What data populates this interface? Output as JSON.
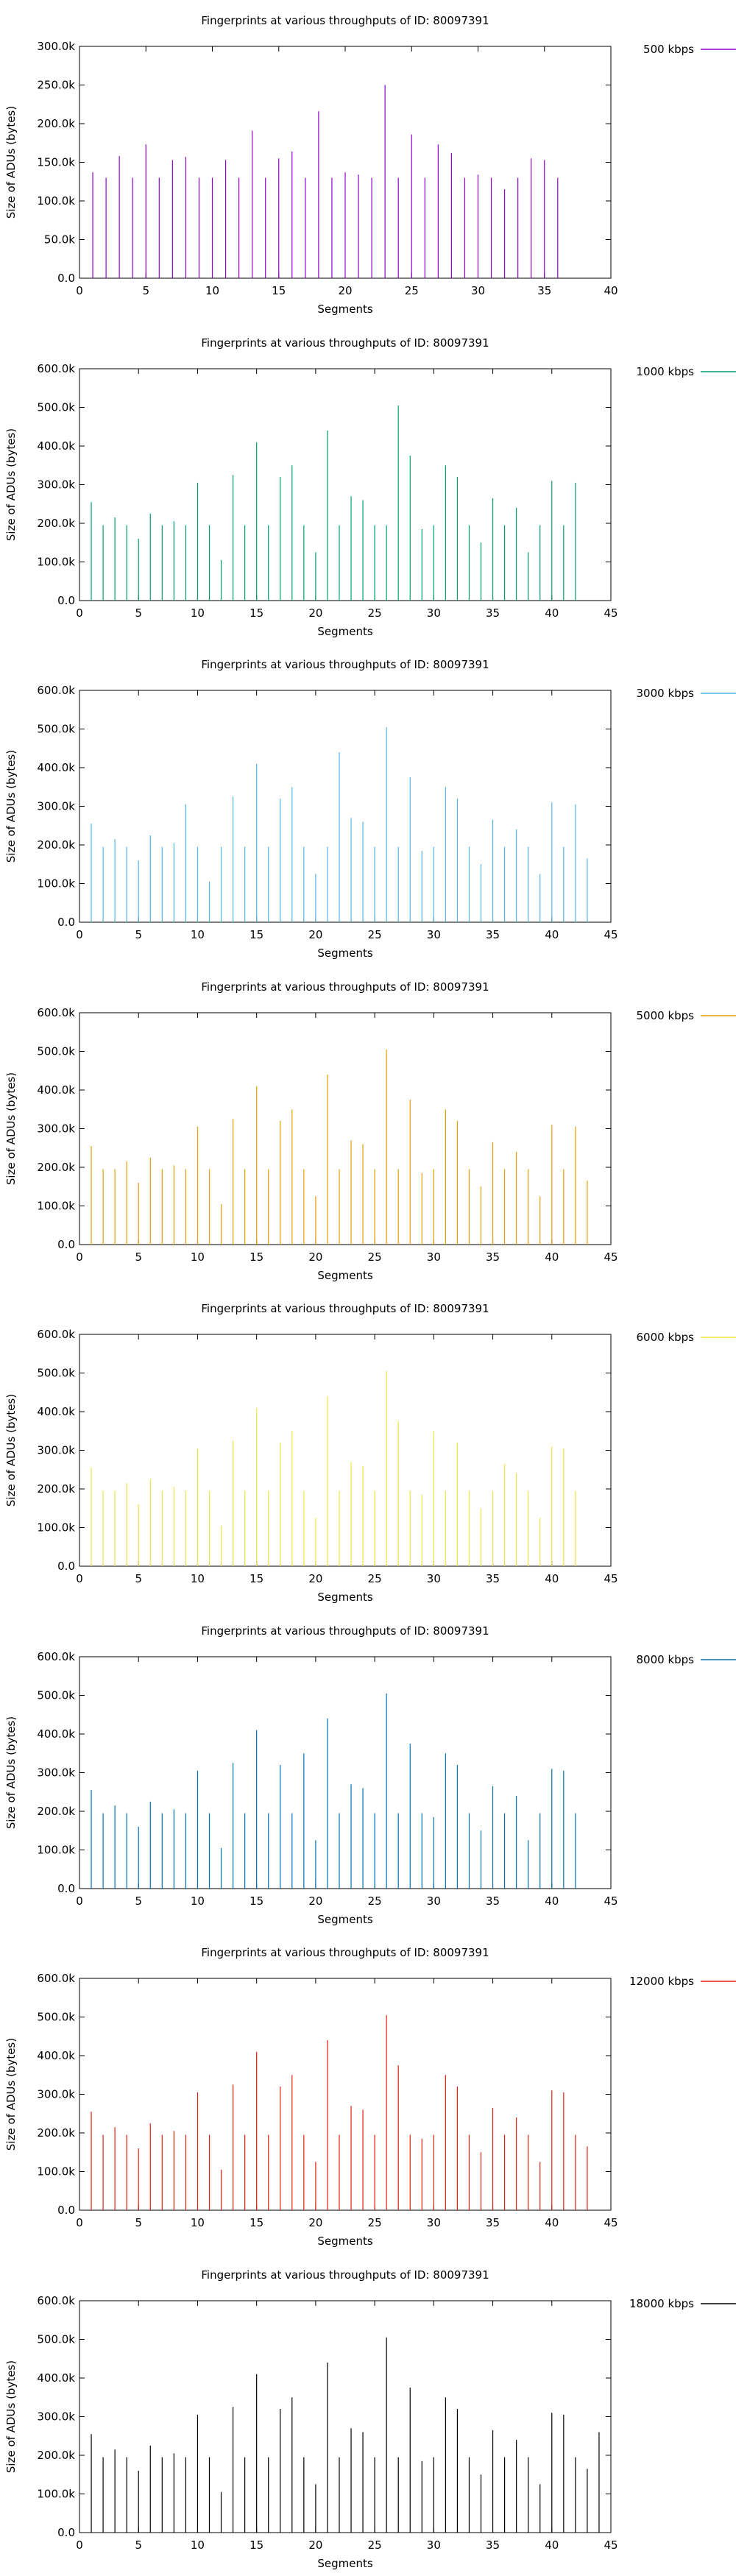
{
  "chart_data": [
    {
      "type": "bar",
      "title": "Fingerprints at various throughputs of ID: 80097391",
      "xlabel": "Segments",
      "ylabel": "Size of ADUs (bytes)",
      "xlim": [
        0,
        40
      ],
      "ylim": [
        0,
        300000
      ],
      "xticks": [
        "0",
        "5",
        "10",
        "15",
        "20",
        "25",
        "30",
        "35",
        "40"
      ],
      "yticks": [
        "0.0",
        "50.0k",
        "100.0k",
        "150.0k",
        "200.0k",
        "250.0k",
        "300.0k"
      ],
      "grid": false,
      "legend_position": "top-right",
      "series": [
        {
          "name": "500 kbps",
          "color": "#9400d3",
          "x": [
            1,
            2,
            3,
            4,
            5,
            6,
            7,
            8,
            9,
            10,
            11,
            12,
            13,
            14,
            15,
            16,
            17,
            18,
            19,
            20,
            21,
            22,
            23,
            24,
            25,
            26,
            27,
            28,
            29,
            30,
            31,
            32,
            33,
            34,
            35,
            36
          ],
          "values": [
            137000,
            130000,
            158000,
            130000,
            173000,
            130000,
            153000,
            157000,
            130000,
            130000,
            153000,
            130000,
            191000,
            130000,
            155000,
            164000,
            130000,
            216000,
            130000,
            137000,
            134000,
            130000,
            250000,
            130000,
            186000,
            130000,
            173000,
            162000,
            130000,
            134000,
            130000,
            115000,
            130000,
            155000,
            153000,
            130000
          ]
        }
      ]
    },
    {
      "type": "bar",
      "title": "Fingerprints at various throughputs of ID: 80097391",
      "xlabel": "Segments",
      "ylabel": "Size of ADUs (bytes)",
      "xlim": [
        0,
        45
      ],
      "ylim": [
        0,
        600000
      ],
      "xticks": [
        "0",
        "5",
        "10",
        "15",
        "20",
        "25",
        "30",
        "35",
        "40",
        "45"
      ],
      "yticks": [
        "0.0",
        "100.0k",
        "200.0k",
        "300.0k",
        "400.0k",
        "500.0k",
        "600.0k"
      ],
      "grid": false,
      "legend_position": "top-right",
      "series": [
        {
          "name": "1000 kbps",
          "color": "#009e73",
          "x": [
            1,
            2,
            3,
            4,
            5,
            6,
            7,
            8,
            9,
            10,
            11,
            12,
            13,
            14,
            15,
            16,
            17,
            18,
            19,
            20,
            21,
            22,
            23,
            24,
            25,
            26,
            27,
            28,
            29,
            30,
            31,
            32,
            33,
            34,
            35,
            36,
            37,
            38,
            39,
            40,
            41,
            42
          ],
          "values": [
            255000,
            195000,
            215000,
            195000,
            160000,
            225000,
            195000,
            205000,
            195000,
            305000,
            195000,
            105000,
            325000,
            195000,
            410000,
            195000,
            320000,
            350000,
            195000,
            125000,
            440000,
            195000,
            270000,
            260000,
            195000,
            195000,
            505000,
            375000,
            185000,
            195000,
            350000,
            320000,
            195000,
            150000,
            265000,
            195000,
            240000,
            125000,
            195000,
            310000,
            195000,
            305000
          ]
        }
      ]
    },
    {
      "type": "bar",
      "title": "Fingerprints at various throughputs of ID: 80097391",
      "xlabel": "Segments",
      "ylabel": "Size of ADUs (bytes)",
      "xlim": [
        0,
        45
      ],
      "ylim": [
        0,
        600000
      ],
      "xticks": [
        "0",
        "5",
        "10",
        "15",
        "20",
        "25",
        "30",
        "35",
        "40",
        "45"
      ],
      "yticks": [
        "0.0",
        "100.0k",
        "200.0k",
        "300.0k",
        "400.0k",
        "500.0k",
        "600.0k"
      ],
      "grid": false,
      "legend_position": "top-right",
      "series": [
        {
          "name": "3000 kbps",
          "color": "#56b4e9",
          "x": [
            1,
            2,
            3,
            4,
            5,
            6,
            7,
            8,
            9,
            10,
            11,
            12,
            13,
            14,
            15,
            16,
            17,
            18,
            19,
            20,
            21,
            22,
            23,
            24,
            25,
            26,
            27,
            28,
            29,
            30,
            31,
            32,
            33,
            34,
            35,
            36,
            37,
            38,
            39,
            40,
            41,
            42,
            43
          ],
          "values": [
            255000,
            195000,
            215000,
            195000,
            160000,
            225000,
            195000,
            205000,
            305000,
            195000,
            105000,
            195000,
            325000,
            195000,
            410000,
            195000,
            320000,
            350000,
            195000,
            125000,
            195000,
            440000,
            270000,
            260000,
            195000,
            505000,
            195000,
            375000,
            185000,
            195000,
            350000,
            320000,
            195000,
            150000,
            265000,
            195000,
            240000,
            195000,
            125000,
            310000,
            195000,
            305000,
            165000
          ]
        }
      ]
    },
    {
      "type": "bar",
      "title": "Fingerprints at various throughputs of ID: 80097391",
      "xlabel": "Segments",
      "ylabel": "Size of ADUs (bytes)",
      "xlim": [
        0,
        45
      ],
      "ylim": [
        0,
        600000
      ],
      "xticks": [
        "0",
        "5",
        "10",
        "15",
        "20",
        "25",
        "30",
        "35",
        "40",
        "45"
      ],
      "yticks": [
        "0.0",
        "100.0k",
        "200.0k",
        "300.0k",
        "400.0k",
        "500.0k",
        "600.0k"
      ],
      "grid": false,
      "legend_position": "top-right",
      "series": [
        {
          "name": "5000 kbps",
          "color": "#e69f00",
          "x": [
            1,
            2,
            3,
            4,
            5,
            6,
            7,
            8,
            9,
            10,
            11,
            12,
            13,
            14,
            15,
            16,
            17,
            18,
            19,
            20,
            21,
            22,
            23,
            24,
            25,
            26,
            27,
            28,
            29,
            30,
            31,
            32,
            33,
            34,
            35,
            36,
            37,
            38,
            39,
            40,
            41,
            42,
            43
          ],
          "values": [
            255000,
            195000,
            195000,
            215000,
            160000,
            225000,
            195000,
            205000,
            195000,
            305000,
            195000,
            105000,
            325000,
            195000,
            410000,
            195000,
            320000,
            350000,
            195000,
            125000,
            440000,
            195000,
            270000,
            260000,
            195000,
            505000,
            195000,
            375000,
            185000,
            195000,
            350000,
            320000,
            195000,
            150000,
            265000,
            195000,
            240000,
            195000,
            125000,
            310000,
            195000,
            305000,
            165000
          ]
        }
      ]
    },
    {
      "type": "bar",
      "title": "Fingerprints at various throughputs of ID: 80097391",
      "xlabel": "Segments",
      "ylabel": "Size of ADUs (bytes)",
      "xlim": [
        0,
        45
      ],
      "ylim": [
        0,
        600000
      ],
      "xticks": [
        "0",
        "5",
        "10",
        "15",
        "20",
        "25",
        "30",
        "35",
        "40",
        "45"
      ],
      "yticks": [
        "0.0",
        "100.0k",
        "200.0k",
        "300.0k",
        "400.0k",
        "500.0k",
        "600.0k"
      ],
      "grid": false,
      "legend_position": "top-right",
      "series": [
        {
          "name": "6000 kbps",
          "color": "#f0e442",
          "x": [
            1,
            2,
            3,
            4,
            5,
            6,
            7,
            8,
            9,
            10,
            11,
            12,
            13,
            14,
            15,
            16,
            17,
            18,
            19,
            20,
            21,
            22,
            23,
            24,
            25,
            26,
            27,
            28,
            29,
            30,
            31,
            32,
            33,
            34,
            35,
            36,
            37,
            38,
            39,
            40,
            41,
            42
          ],
          "values": [
            255000,
            195000,
            195000,
            215000,
            160000,
            225000,
            195000,
            205000,
            195000,
            305000,
            195000,
            105000,
            325000,
            195000,
            410000,
            195000,
            320000,
            350000,
            195000,
            125000,
            440000,
            195000,
            270000,
            260000,
            195000,
            505000,
            375000,
            195000,
            185000,
            350000,
            195000,
            320000,
            195000,
            150000,
            195000,
            265000,
            240000,
            195000,
            125000,
            310000,
            305000,
            195000
          ]
        }
      ]
    },
    {
      "type": "bar",
      "title": "Fingerprints at various throughputs of ID: 80097391",
      "xlabel": "Segments",
      "ylabel": "Size of ADUs (bytes)",
      "xlim": [
        0,
        45
      ],
      "ylim": [
        0,
        600000
      ],
      "xticks": [
        "0",
        "5",
        "10",
        "15",
        "20",
        "25",
        "30",
        "35",
        "40",
        "45"
      ],
      "yticks": [
        "0.0",
        "100.0k",
        "200.0k",
        "300.0k",
        "400.0k",
        "500.0k",
        "600.0k"
      ],
      "grid": false,
      "legend_position": "top-right",
      "series": [
        {
          "name": "8000 kbps",
          "color": "#0072b2",
          "x": [
            1,
            2,
            3,
            4,
            5,
            6,
            7,
            8,
            9,
            10,
            11,
            12,
            13,
            14,
            15,
            16,
            17,
            18,
            19,
            20,
            21,
            22,
            23,
            24,
            25,
            26,
            27,
            28,
            29,
            30,
            31,
            32,
            33,
            34,
            35,
            36,
            37,
            38,
            39,
            40,
            41,
            42
          ],
          "values": [
            255000,
            195000,
            215000,
            195000,
            160000,
            225000,
            195000,
            205000,
            195000,
            305000,
            195000,
            105000,
            325000,
            195000,
            410000,
            195000,
            320000,
            195000,
            350000,
            125000,
            440000,
            195000,
            270000,
            260000,
            195000,
            505000,
            195000,
            375000,
            195000,
            185000,
            350000,
            320000,
            195000,
            150000,
            265000,
            195000,
            240000,
            125000,
            195000,
            310000,
            305000,
            195000
          ]
        }
      ]
    },
    {
      "type": "bar",
      "title": "Fingerprints at various throughputs of ID: 80097391",
      "xlabel": "Segments",
      "ylabel": "Size of ADUs (bytes)",
      "xlim": [
        0,
        45
      ],
      "ylim": [
        0,
        600000
      ],
      "xticks": [
        "0",
        "5",
        "10",
        "15",
        "20",
        "25",
        "30",
        "35",
        "40",
        "45"
      ],
      "yticks": [
        "0.0",
        "100.0k",
        "200.0k",
        "300.0k",
        "400.0k",
        "500.0k",
        "600.0k"
      ],
      "grid": false,
      "legend_position": "top-right",
      "series": [
        {
          "name": "12000 kbps",
          "color": "#e51e10",
          "x": [
            1,
            2,
            3,
            4,
            5,
            6,
            7,
            8,
            9,
            10,
            11,
            12,
            13,
            14,
            15,
            16,
            17,
            18,
            19,
            20,
            21,
            22,
            23,
            24,
            25,
            26,
            27,
            28,
            29,
            30,
            31,
            32,
            33,
            34,
            35,
            36,
            37,
            38,
            39,
            40,
            41,
            42,
            43
          ],
          "values": [
            255000,
            195000,
            215000,
            195000,
            160000,
            225000,
            195000,
            205000,
            195000,
            305000,
            195000,
            105000,
            325000,
            195000,
            410000,
            195000,
            320000,
            350000,
            195000,
            125000,
            440000,
            195000,
            270000,
            260000,
            195000,
            505000,
            375000,
            195000,
            185000,
            195000,
            350000,
            320000,
            195000,
            150000,
            265000,
            195000,
            240000,
            195000,
            125000,
            310000,
            305000,
            195000,
            165000
          ]
        }
      ]
    },
    {
      "type": "bar",
      "title": "Fingerprints at various throughputs of ID: 80097391",
      "xlabel": "Segments",
      "ylabel": "Size of ADUs (bytes)",
      "xlim": [
        0,
        45
      ],
      "ylim": [
        0,
        600000
      ],
      "xticks": [
        "0",
        "5",
        "10",
        "15",
        "20",
        "25",
        "30",
        "35",
        "40",
        "45"
      ],
      "yticks": [
        "0.0",
        "100.0k",
        "200.0k",
        "300.0k",
        "400.0k",
        "500.0k",
        "600.0k"
      ],
      "grid": false,
      "legend_position": "top-right",
      "series": [
        {
          "name": "18000 kbps",
          "color": "#000000",
          "x": [
            1,
            2,
            3,
            4,
            5,
            6,
            7,
            8,
            9,
            10,
            11,
            12,
            13,
            14,
            15,
            16,
            17,
            18,
            19,
            20,
            21,
            22,
            23,
            24,
            25,
            26,
            27,
            28,
            29,
            30,
            31,
            32,
            33,
            34,
            35,
            36,
            37,
            38,
            39,
            40,
            41,
            42,
            43,
            44
          ],
          "values": [
            255000,
            195000,
            215000,
            195000,
            160000,
            225000,
            195000,
            205000,
            195000,
            305000,
            195000,
            105000,
            325000,
            195000,
            410000,
            195000,
            320000,
            350000,
            195000,
            125000,
            440000,
            195000,
            270000,
            260000,
            195000,
            505000,
            195000,
            375000,
            185000,
            195000,
            350000,
            320000,
            195000,
            150000,
            265000,
            195000,
            240000,
            195000,
            125000,
            310000,
            305000,
            195000,
            165000,
            260000
          ]
        }
      ]
    }
  ]
}
